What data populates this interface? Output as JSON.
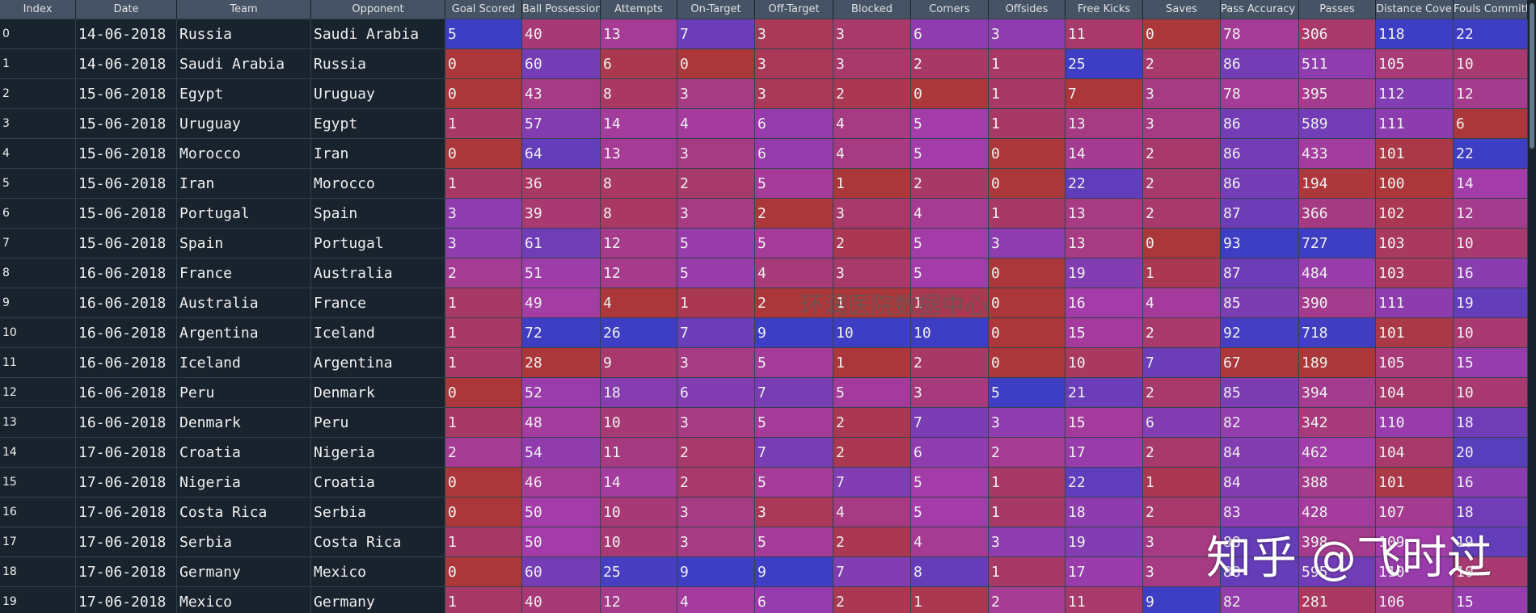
{
  "table": {
    "columns": [
      "Index",
      "Date",
      "Team",
      "Opponent",
      "Goal Scored",
      "Ball Possession %",
      "Attempts",
      "On-Target",
      "Off-Target",
      "Blocked",
      "Corners",
      "Offsides",
      "Free Kicks",
      "Saves",
      "Pass Accuracy %",
      "Passes",
      "Distance Covered (Kms)",
      "Fouls Committed"
    ],
    "rows": [
      [
        0,
        "14-06-2018",
        "Russia",
        "Saudi Arabia",
        5,
        40,
        13,
        7,
        3,
        3,
        6,
        3,
        11,
        0,
        78,
        306,
        118,
        22
      ],
      [
        1,
        "14-06-2018",
        "Saudi Arabia",
        "Russia",
        0,
        60,
        6,
        0,
        3,
        3,
        2,
        1,
        25,
        2,
        86,
        511,
        105,
        10
      ],
      [
        2,
        "15-06-2018",
        "Egypt",
        "Uruguay",
        0,
        43,
        8,
        3,
        3,
        2,
        0,
        1,
        7,
        3,
        78,
        395,
        112,
        12
      ],
      [
        3,
        "15-06-2018",
        "Uruguay",
        "Egypt",
        1,
        57,
        14,
        4,
        6,
        4,
        5,
        1,
        13,
        3,
        86,
        589,
        111,
        6
      ],
      [
        4,
        "15-06-2018",
        "Morocco",
        "Iran",
        0,
        64,
        13,
        3,
        6,
        4,
        5,
        0,
        14,
        2,
        86,
        433,
        101,
        22
      ],
      [
        5,
        "15-06-2018",
        "Iran",
        "Morocco",
        1,
        36,
        8,
        2,
        5,
        1,
        2,
        0,
        22,
        2,
        86,
        194,
        100,
        14
      ],
      [
        6,
        "15-06-2018",
        "Portugal",
        "Spain",
        3,
        39,
        8,
        3,
        2,
        3,
        4,
        1,
        13,
        2,
        87,
        366,
        102,
        12
      ],
      [
        7,
        "15-06-2018",
        "Spain",
        "Portugal",
        3,
        61,
        12,
        5,
        5,
        2,
        5,
        3,
        13,
        0,
        93,
        727,
        103,
        10
      ],
      [
        8,
        "16-06-2018",
        "France",
        "Australia",
        2,
        51,
        12,
        5,
        4,
        3,
        5,
        0,
        19,
        1,
        87,
        484,
        103,
        16
      ],
      [
        9,
        "16-06-2018",
        "Australia",
        "France",
        1,
        49,
        4,
        1,
        2,
        1,
        1,
        0,
        16,
        4,
        85,
        390,
        111,
        19
      ],
      [
        10,
        "16-06-2018",
        "Argentina",
        "Iceland",
        1,
        72,
        26,
        7,
        9,
        10,
        10,
        0,
        15,
        2,
        92,
        718,
        101,
        10
      ],
      [
        11,
        "16-06-2018",
        "Iceland",
        "Argentina",
        1,
        28,
        9,
        3,
        5,
        1,
        2,
        0,
        10,
        7,
        67,
        189,
        105,
        15
      ],
      [
        12,
        "16-06-2018",
        "Peru",
        "Denmark",
        0,
        52,
        18,
        6,
        7,
        5,
        3,
        5,
        21,
        2,
        85,
        394,
        104,
        10
      ],
      [
        13,
        "16-06-2018",
        "Denmark",
        "Peru",
        1,
        48,
        10,
        3,
        5,
        2,
        7,
        3,
        15,
        6,
        82,
        342,
        110,
        18
      ],
      [
        14,
        "17-06-2018",
        "Croatia",
        "Nigeria",
        2,
        54,
        11,
        2,
        7,
        2,
        6,
        2,
        17,
        2,
        84,
        462,
        104,
        20
      ],
      [
        15,
        "17-06-2018",
        "Nigeria",
        "Croatia",
        0,
        46,
        14,
        2,
        5,
        7,
        5,
        1,
        22,
        1,
        84,
        388,
        101,
        16
      ],
      [
        16,
        "17-06-2018",
        "Costa Rica",
        "Serbia",
        0,
        50,
        10,
        3,
        3,
        4,
        5,
        1,
        18,
        2,
        83,
        428,
        107,
        18
      ],
      [
        17,
        "17-06-2018",
        "Serbia",
        "Costa Rica",
        1,
        50,
        10,
        3,
        5,
        2,
        4,
        3,
        19,
        3,
        88,
        398,
        109,
        19
      ],
      [
        18,
        "17-06-2018",
        "Germany",
        "Mexico",
        0,
        60,
        25,
        9,
        9,
        7,
        8,
        1,
        17,
        3,
        88,
        595,
        110,
        10
      ],
      [
        19,
        "17-06-2018",
        "Mexico",
        "Germany",
        1,
        40,
        12,
        4,
        6,
        2,
        1,
        2,
        11,
        9,
        82,
        281,
        106,
        15
      ]
    ]
  },
  "watermarks": [
    "环润医院数据中心",
    "知乎 @飞时过"
  ]
}
